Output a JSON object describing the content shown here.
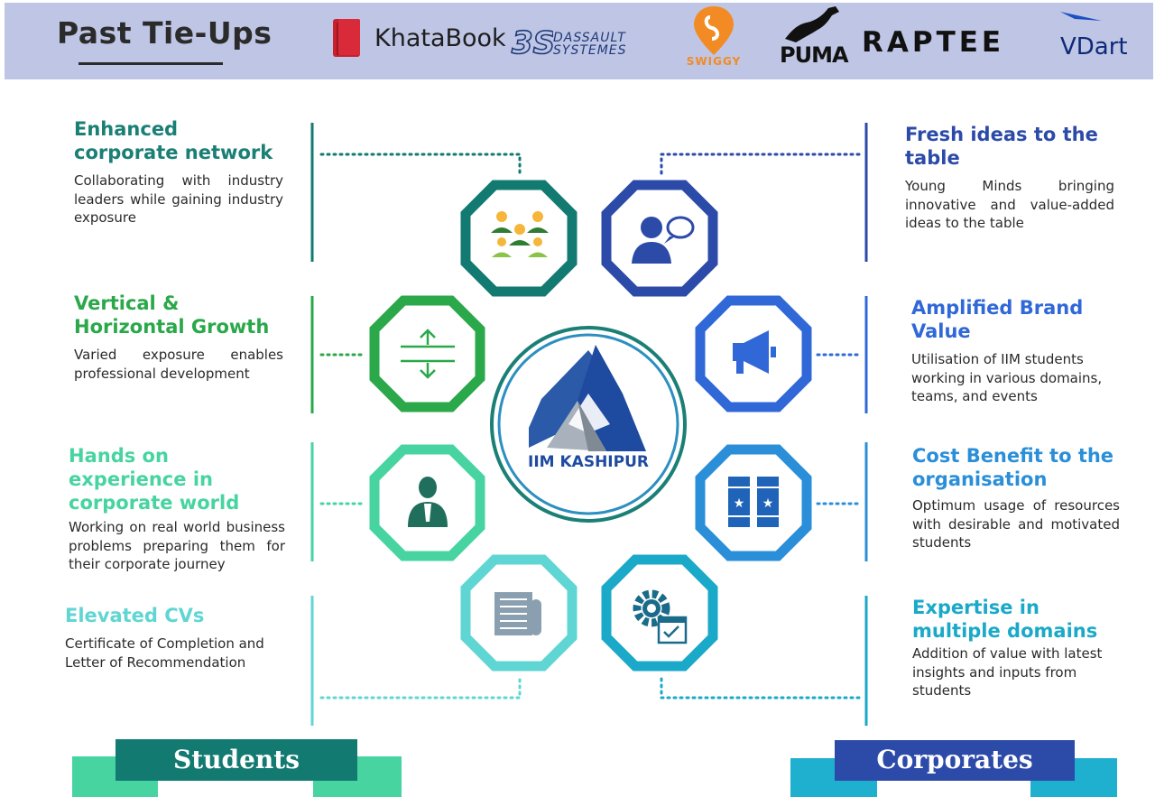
{
  "header": {
    "title": "Past Tie-Ups",
    "logos": {
      "khatabook": "KhataBook",
      "dassault_line1": "DASSAULT",
      "dassault_line2": "SYSTEMES",
      "swiggy": "SWIGGY",
      "puma": "PUMA",
      "raptee": "RAPTEE",
      "vdart": "VDart"
    }
  },
  "center": {
    "logo_text": "IIM KASHIPUR"
  },
  "students": {
    "label": "Students",
    "items": [
      {
        "title": "Enhanced corporate network",
        "desc": "Collaborating with industry leaders while gaining industry exposure",
        "color": "#1a7f75"
      },
      {
        "title": "Vertical & Horizontal Growth",
        "desc": "Varied exposure enables professional development",
        "color": "#2aa84a"
      },
      {
        "title": "Hands on experience in corporate world",
        "desc": "Working on real world business problems preparing them for their corporate journey",
        "color": "#47d4a1"
      },
      {
        "title": "Elevated CVs",
        "desc": "Certificate of Completion and Letter of Recommendation",
        "color": "#5fd6d3"
      }
    ]
  },
  "corporates": {
    "label": "Corporates",
    "items": [
      {
        "title": "Fresh ideas to the table",
        "desc": "Young Minds bringing innovative and value-added ideas to the table",
        "color": "#2c4aa8"
      },
      {
        "title": "Amplified Brand Value",
        "desc": "Utilisation of IIM students working in various domains, teams, and events",
        "color": "#3068d8"
      },
      {
        "title": "Cost Benefit to the organisation",
        "desc": "Optimum usage of resources with desirable and motivated students",
        "color": "#2a8fd8"
      },
      {
        "title": "Expertise in multiple domains",
        "desc": "Addition of value with latest insights and inputs from students",
        "color": "#1aa9c8"
      }
    ]
  },
  "colors": {
    "header_bg": "#bfc5e4",
    "teal_dark": "#137a72",
    "green": "#2aa84a",
    "mint": "#47d4a1",
    "aqua": "#5fd6d3",
    "navy": "#2c4aa8",
    "blue": "#3068d8",
    "sky": "#2a8fd8",
    "cyan": "#1aa9c8"
  },
  "icons": [
    "team-icon",
    "idea-person-icon",
    "growth-arrows-icon",
    "megaphone-icon",
    "businessman-icon",
    "star-banners-icon",
    "document-icon",
    "gear-checklist-icon"
  ]
}
